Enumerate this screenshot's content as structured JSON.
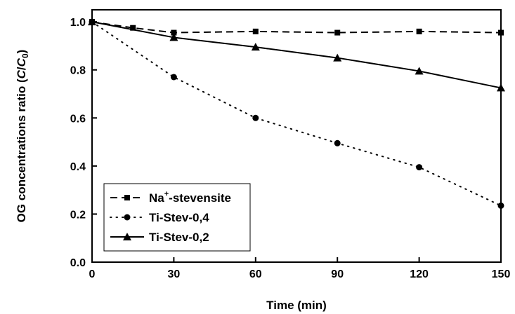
{
  "chart_data": {
    "type": "line",
    "title": "",
    "xlabel": "Time (min)",
    "ylabel": {
      "prefix": "OG concentrations ratio (",
      "num": "C",
      "slash": "/",
      "den": "C",
      "den_sub": "0",
      "suffix": ")"
    },
    "xlim": [
      0,
      150
    ],
    "ylim": [
      0.0,
      1.05
    ],
    "xticks": [
      0,
      30,
      60,
      90,
      120,
      150
    ],
    "yticks": [
      0.0,
      0.2,
      0.4,
      0.6,
      0.8,
      1.0
    ],
    "xtick_labels": [
      "0",
      "30",
      "60",
      "90",
      "120",
      "150"
    ],
    "ytick_labels": [
      "0.0",
      "0.2",
      "0.4",
      "0.6",
      "0.8",
      "1.0"
    ],
    "grid": false,
    "legend_position": "bottom-left",
    "series": [
      {
        "name": "stevensite",
        "name_prefix": "Na",
        "name_sup": "+",
        "name_suffix": "-stevensite",
        "marker": "square",
        "line_style": "dashed",
        "x": [
          0,
          15,
          30,
          60,
          90,
          120,
          150
        ],
        "y": [
          1.0,
          0.975,
          0.955,
          0.96,
          0.955,
          0.96,
          0.955
        ]
      },
      {
        "name": "Ti-Stev-0,4",
        "name_prefix": "Ti-Stev-0,4",
        "name_sup": "",
        "name_suffix": "",
        "marker": "circle",
        "line_style": "dotted",
        "x": [
          0,
          30,
          60,
          90,
          120,
          150
        ],
        "y": [
          1.0,
          0.77,
          0.6,
          0.495,
          0.395,
          0.235
        ]
      },
      {
        "name": "Ti-Stev-0,2",
        "name_prefix": "Ti-Stev-0,2",
        "name_sup": "",
        "name_suffix": "",
        "marker": "triangle",
        "line_style": "solid",
        "x": [
          0,
          30,
          60,
          90,
          120,
          150
        ],
        "y": [
          1.0,
          0.935,
          0.895,
          0.85,
          0.795,
          0.725
        ]
      }
    ]
  }
}
